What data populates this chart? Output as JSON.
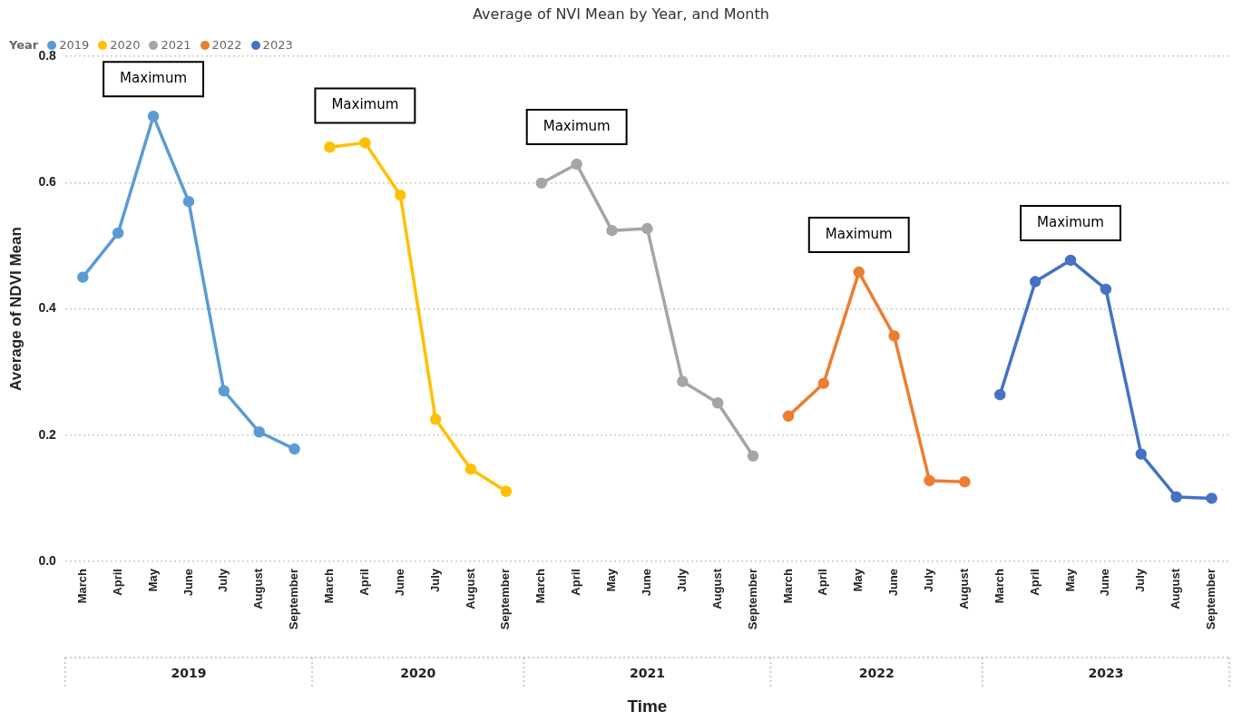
{
  "chart_data": {
    "type": "line",
    "title": "Average of NVI Mean by Year, and Month",
    "xlabel": "Time",
    "ylabel": "Average of NDVI Mean",
    "legend_title": "Year",
    "legend": "top left",
    "grid": "y",
    "marker": "circle",
    "line_style": "solid",
    "categories": [
      "March",
      "April",
      "May",
      "June",
      "July",
      "August",
      "September",
      "March",
      "April",
      "June",
      "July",
      "August",
      "September",
      "March",
      "April",
      "May",
      "June",
      "July",
      "August",
      "September",
      "March",
      "April",
      "May",
      "June",
      "July",
      "August",
      "March",
      "April",
      "May",
      "June",
      "July",
      "August",
      "September"
    ],
    "ylim": [
      0,
      0.8
    ],
    "yticks": [
      {
        "value": 0,
        "label": "0.0"
      },
      0.2,
      0.4,
      0.6,
      0.8
    ],
    "series": [
      {
        "name": "2019",
        "color": "#5b9bd5",
        "values": [
          0.45,
          0.52,
          0.705,
          0.57,
          0.27,
          0.205,
          0.178,
          null,
          null,
          null,
          null,
          null,
          null,
          null,
          null,
          null,
          null,
          null,
          null,
          null,
          null,
          null,
          null,
          null,
          null,
          null,
          null,
          null,
          null,
          null,
          null,
          null,
          null
        ]
      },
      {
        "name": "2020",
        "color": "#ffc000",
        "values": [
          null,
          null,
          null,
          null,
          null,
          null,
          null,
          0.656,
          0.663,
          0.58,
          0.225,
          0.146,
          0.111,
          null,
          null,
          null,
          null,
          null,
          null,
          null,
          null,
          null,
          null,
          null,
          null,
          null,
          null,
          null,
          null,
          null,
          null,
          null,
          null
        ]
      },
      {
        "name": "2021",
        "color": "#a5a5a5",
        "values": [
          null,
          null,
          null,
          null,
          null,
          null,
          null,
          null,
          null,
          null,
          null,
          null,
          null,
          0.599,
          0.629,
          0.524,
          0.527,
          0.285,
          0.251,
          0.167,
          null,
          null,
          null,
          null,
          null,
          null,
          null,
          null,
          null,
          null,
          null,
          null,
          null
        ]
      },
      {
        "name": "2022",
        "color": "#ed7d31",
        "values": [
          null,
          null,
          null,
          null,
          null,
          null,
          null,
          null,
          null,
          null,
          null,
          null,
          null,
          null,
          null,
          null,
          null,
          null,
          null,
          null,
          0.23,
          0.282,
          0.458,
          0.357,
          0.128,
          0.126,
          null,
          null,
          null,
          null,
          null,
          null,
          null
        ]
      },
      {
        "name": "2023",
        "color": "#4472c4",
        "values": [
          null,
          null,
          null,
          null,
          null,
          null,
          null,
          null,
          null,
          null,
          null,
          null,
          null,
          null,
          null,
          null,
          null,
          null,
          null,
          null,
          null,
          null,
          null,
          null,
          null,
          null,
          0.264,
          0.443,
          0.477,
          0.431,
          0.17,
          0.102,
          0.1
        ]
      }
    ],
    "annotations": [
      "Maximum",
      "Maximum",
      "Maximum",
      "Maximum",
      "Maximum"
    ]
  }
}
